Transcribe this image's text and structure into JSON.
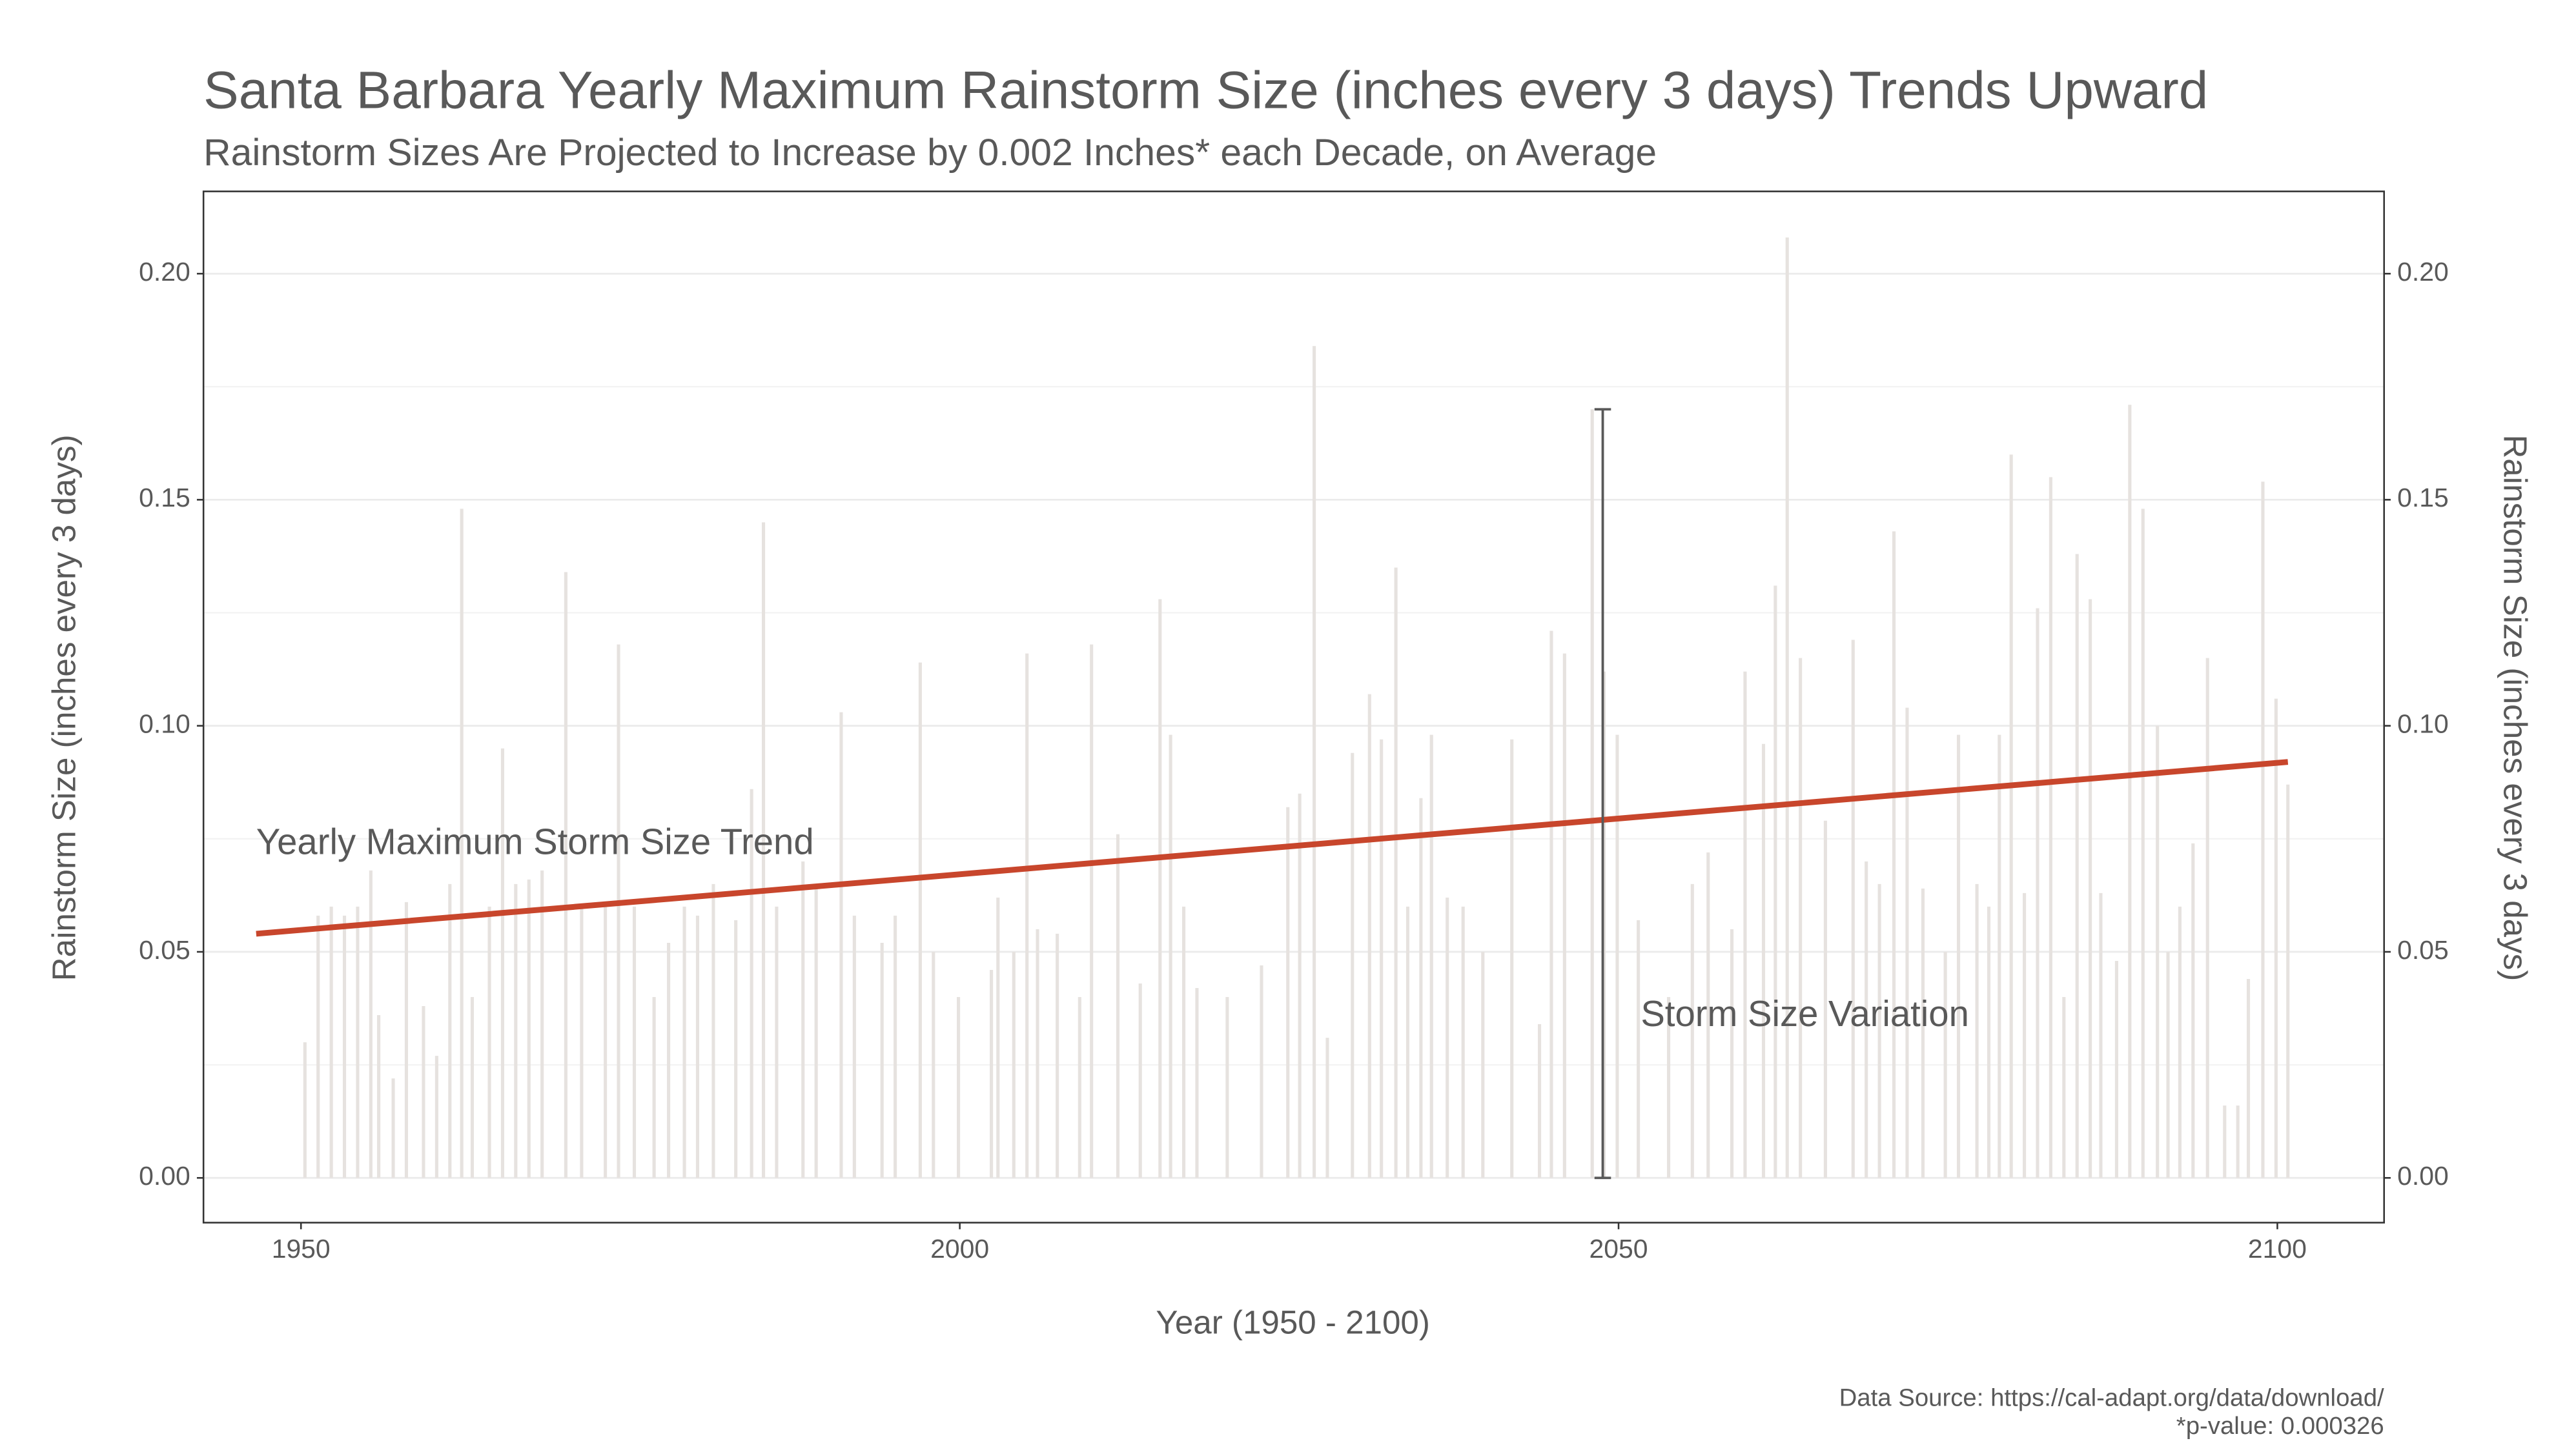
{
  "chart_data": {
    "type": "line",
    "title": "Santa Barbara Yearly Maximum Rainstorm Size (inches every 3 days) Trends Upward",
    "subtitle": "Rainstorm Sizes Are Projected to Increase by 0.002 Inches* each Decade, on Average",
    "x_label": "Year (1950 - 2100)",
    "y_label": "Rainstorm Size (inches every 3 days)",
    "y2_label": "Rainstorm Size (inches every 3 days)",
    "caption": [
      "Data Source: https://cal-adapt.org/data/download/",
      "*p-value: 0.000326"
    ],
    "xlim": [
      1942.6,
      2108.1
    ],
    "ylim": [
      -0.0099,
      0.2182
    ],
    "xticks": [
      1950,
      2000,
      2050,
      2100
    ],
    "yticks": [
      {
        "value": 0,
        "label": "0.00"
      },
      {
        "value": 0.05,
        "label": "0.05"
      },
      {
        "value": 0.1,
        "label": "0.10"
      },
      {
        "value": 0.15,
        "label": "0.15"
      },
      {
        "value": 0.2,
        "label": "0.20"
      }
    ],
    "grid": true,
    "series": [
      {
        "name": "Storm Size",
        "color": "#e6e2df",
        "x": [
          1950.3,
          1951.3,
          1952.3,
          1953.3,
          1954.3,
          1955.3,
          1955.9,
          1957.0,
          1958.0,
          1959.3,
          1960.3,
          1961.3,
          1962.2,
          1963.0,
          1964.3,
          1965.3,
          1966.3,
          1967.3,
          1968.3,
          1970.1,
          1971.3,
          1973.1,
          1974.1,
          1975.3,
          1976.8,
          1977.9,
          1979.1,
          1980.1,
          1981.3,
          1983.0,
          1984.2,
          1985.1,
          1986.1,
          1988.1,
          1989.1,
          1991.0,
          1992.0,
          1994.1,
          1995.1,
          1997.0,
          1998.0,
          1999.9,
          2002.4,
          2002.9,
          2004.1,
          2005.1,
          2005.9,
          2007.4,
          2009.1,
          2010.0,
          2012.0,
          2013.7,
          2015.2,
          2016.0,
          2017.0,
          2018.0,
          2020.3,
          2022.9,
          2024.9,
          2025.8,
          2026.9,
          2027.9,
          2029.8,
          2031.1,
          2032.0,
          2033.1,
          2034.0,
          2035.0,
          2035.8,
          2037.0,
          2038.2,
          2039.7,
          2041.9,
          2044.0,
          2044.9,
          2045.9,
          2048.0,
          2048.9,
          2049.9,
          2051.5,
          2053.8,
          2055.6,
          2056.8,
          2058.6,
          2059.6,
          2061.0,
          2061.9,
          2062.8,
          2063.8,
          2065.7,
          2067.8,
          2068.8,
          2069.8,
          2070.9,
          2071.9,
          2073.1,
          2074.8,
          2075.8,
          2077.2,
          2078.1,
          2078.9,
          2079.8,
          2080.8,
          2081.8,
          2082.8,
          2083.8,
          2084.8,
          2085.8,
          2086.6,
          2087.8,
          2088.8,
          2089.8,
          2090.9,
          2091.7,
          2092.6,
          2093.6,
          2094.7,
          2096.0,
          2097.0,
          2097.8,
          2098.9,
          2099.9,
          2100.8
        ],
        "values": [
          0.03,
          0.058,
          0.06,
          0.058,
          0.06,
          0.068,
          0.036,
          0.022,
          0.061,
          0.038,
          0.027,
          0.065,
          0.148,
          0.04,
          0.06,
          0.095,
          0.065,
          0.066,
          0.068,
          0.134,
          0.06,
          0.06,
          0.118,
          0.06,
          0.04,
          0.052,
          0.06,
          0.058,
          0.065,
          0.057,
          0.086,
          0.145,
          0.06,
          0.07,
          0.064,
          0.103,
          0.058,
          0.052,
          0.058,
          0.114,
          0.05,
          0.04,
          0.046,
          0.062,
          0.05,
          0.116,
          0.055,
          0.054,
          0.04,
          0.118,
          0.076,
          0.043,
          0.128,
          0.098,
          0.06,
          0.042,
          0.04,
          0.047,
          0.082,
          0.085,
          0.184,
          0.031,
          0.094,
          0.107,
          0.097,
          0.135,
          0.06,
          0.084,
          0.098,
          0.062,
          0.06,
          0.05,
          0.097,
          0.034,
          0.121,
          0.116,
          0.17,
          0.112,
          0.098,
          0.057,
          0.04,
          0.065,
          0.072,
          0.055,
          0.112,
          0.096,
          0.131,
          0.208,
          0.115,
          0.079,
          0.119,
          0.07,
          0.065,
          0.143,
          0.104,
          0.064,
          0.05,
          0.098,
          0.065,
          0.06,
          0.098,
          0.16,
          0.063,
          0.126,
          0.155,
          0.04,
          0.138,
          0.128,
          0.063,
          0.048,
          0.171,
          0.148,
          0.1,
          0.05,
          0.06,
          0.074,
          0.115,
          0.016,
          0.016,
          0.044,
          0.154,
          0.106,
          0.087
        ]
      },
      {
        "name": "Yearly Maximum Storm Size Trend",
        "color": "#c8462c",
        "x": [
          1946.6,
          2100.8
        ],
        "values": [
          0.054,
          0.092
        ]
      }
    ],
    "variation": {
      "name": "Storm Size Variation",
      "x": 2048.8,
      "values": [
        0,
        0.17
      ],
      "color": "#595959"
    }
  }
}
